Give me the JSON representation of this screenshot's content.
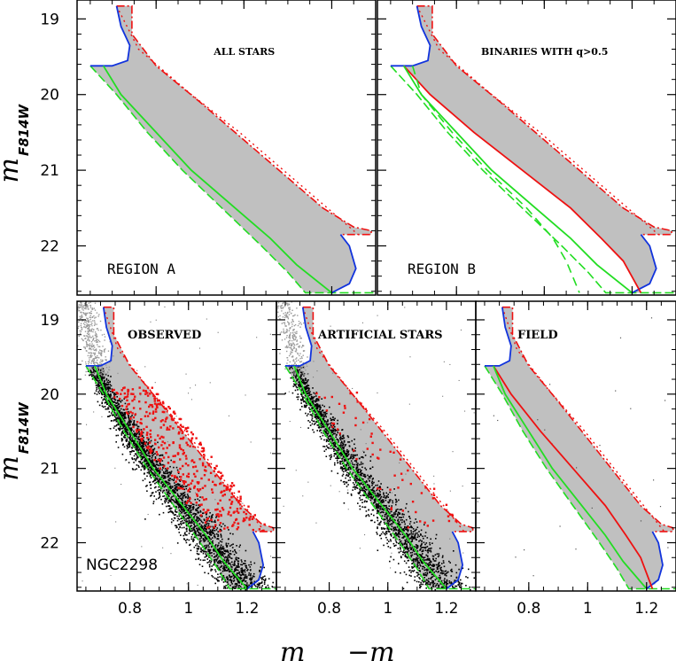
{
  "figure": {
    "xlabel_main": "m",
    "xlabel_minus": "−m",
    "ylabel_main": "m",
    "ylabel_sub": "F814W",
    "colors": {
      "envelope_fill": "#c0c0c0",
      "msrl": "#22dd22",
      "binary_edge": "#ee1111",
      "turnoff": "#1133dd",
      "ms_stars": "#000000",
      "binary_stars": "#ee1111",
      "bright_stars": "#9a9a9a"
    }
  },
  "chart_data": [
    {
      "id": "all-stars",
      "type": "scatter",
      "title": "ALL STARS",
      "region_label": "REGION A",
      "xlim": [
        0.62,
        1.3
      ],
      "ylim": [
        22.65,
        18.75
      ],
      "yticks": [
        19,
        20,
        21,
        22
      ],
      "xticks": [
        0.8,
        1,
        1.2
      ],
      "show_xtick_labels": false,
      "show_ytick_labels": true,
      "mode": "region-a"
    },
    {
      "id": "binaries-q",
      "type": "scatter",
      "title": "BINARIES WITH q>0.5",
      "region_label": "REGION B",
      "xlim": [
        0.62,
        1.3
      ],
      "ylim": [
        22.65,
        18.75
      ],
      "yticks": [
        19,
        20,
        21,
        22
      ],
      "xticks": [
        0.8,
        1,
        1.2
      ],
      "show_xtick_labels": false,
      "show_ytick_labels": false,
      "mode": "region-b"
    },
    {
      "id": "observed",
      "type": "scatter",
      "title": "OBSERVED",
      "cluster_label": "NGC2298",
      "xlim": [
        0.62,
        1.3
      ],
      "ylim": [
        22.65,
        18.75
      ],
      "yticks": [
        19,
        20,
        21,
        22
      ],
      "xticks": [
        0.8,
        1,
        1.2
      ],
      "xtick_labels": [
        "0.8",
        "1",
        "1.2"
      ],
      "show_xtick_labels": true,
      "show_ytick_labels": true,
      "mode": "observed"
    },
    {
      "id": "artificial",
      "type": "scatter",
      "title": "ARTIFICIAL STARS",
      "xlim": [
        0.62,
        1.3
      ],
      "ylim": [
        22.65,
        18.75
      ],
      "yticks": [
        19,
        20,
        21,
        22
      ],
      "xticks": [
        0.8,
        1,
        1.2
      ],
      "xtick_labels": [
        "0.8",
        "1",
        "1.2"
      ],
      "show_xtick_labels": true,
      "show_ytick_labels": false,
      "mode": "artificial"
    },
    {
      "id": "field",
      "type": "scatter",
      "title": "FIELD",
      "xlim": [
        0.62,
        1.3
      ],
      "ylim": [
        22.65,
        18.75
      ],
      "yticks": [
        19,
        20,
        21,
        22
      ],
      "xticks": [
        0.8,
        1,
        1.2
      ],
      "xtick_labels": [
        "0.8",
        "1",
        "1.2"
      ],
      "show_xtick_labels": true,
      "show_ytick_labels": false,
      "mode": "field"
    }
  ],
  "fiducial": {
    "msrl": [
      [
        0.68,
        19.62
      ],
      [
        0.72,
        20.0
      ],
      [
        0.8,
        20.5
      ],
      [
        0.88,
        21.0
      ],
      [
        0.98,
        21.5
      ],
      [
        1.06,
        21.9
      ],
      [
        1.12,
        22.25
      ],
      [
        1.2,
        22.62
      ]
    ],
    "binary_edge_dotted_offset": 0.0,
    "binary_edge_dotted": [
      [
        0.71,
        18.83
      ],
      [
        0.76,
        19.4
      ],
      [
        0.88,
        20.0
      ],
      [
        0.99,
        20.5
      ],
      [
        1.09,
        21.0
      ],
      [
        1.19,
        21.5
      ],
      [
        1.26,
        21.85
      ]
    ],
    "binary_q05": [
      [
        0.68,
        19.62
      ],
      [
        0.74,
        20.0
      ],
      [
        0.84,
        20.5
      ],
      [
        0.95,
        21.0
      ],
      [
        1.06,
        21.5
      ],
      [
        1.13,
        21.9
      ],
      [
        1.18,
        22.2
      ],
      [
        1.22,
        22.62
      ]
    ],
    "green_dashed_b": [
      [
        0.7,
        19.62
      ],
      [
        0.72,
        20.0
      ],
      [
        0.79,
        20.5
      ],
      [
        0.87,
        21.0
      ],
      [
        0.96,
        21.5
      ],
      [
        1.02,
        21.9
      ],
      [
        1.05,
        22.2
      ],
      [
        1.08,
        22.62
      ]
    ],
    "upper_left": [
      [
        0.71,
        18.83
      ],
      [
        0.72,
        19.1
      ],
      [
        0.74,
        19.35
      ],
      [
        0.735,
        19.55
      ],
      [
        0.7,
        19.62
      ],
      [
        0.65,
        19.62
      ]
    ],
    "outer_red": [
      [
        0.71,
        18.83
      ],
      [
        0.745,
        18.83
      ],
      [
        0.745,
        19.2
      ],
      [
        0.8,
        19.62
      ],
      [
        0.9,
        20.1
      ],
      [
        1.0,
        20.6
      ],
      [
        1.1,
        21.1
      ],
      [
        1.18,
        21.5
      ],
      [
        1.25,
        21.75
      ],
      [
        1.29,
        21.8
      ],
      [
        1.29,
        21.85
      ],
      [
        1.22,
        21.85
      ]
    ],
    "lower_green": [
      [
        0.65,
        19.62
      ],
      [
        0.71,
        20.0
      ],
      [
        0.78,
        20.5
      ],
      [
        0.86,
        21.0
      ],
      [
        0.95,
        21.5
      ],
      [
        1.04,
        22.0
      ],
      [
        1.1,
        22.35
      ],
      [
        1.14,
        22.62
      ],
      [
        1.3,
        22.62
      ]
    ],
    "blue_turn": [
      [
        1.22,
        21.85
      ],
      [
        1.24,
        22.0
      ],
      [
        1.255,
        22.3
      ],
      [
        1.24,
        22.5
      ],
      [
        1.2,
        22.62
      ]
    ]
  }
}
